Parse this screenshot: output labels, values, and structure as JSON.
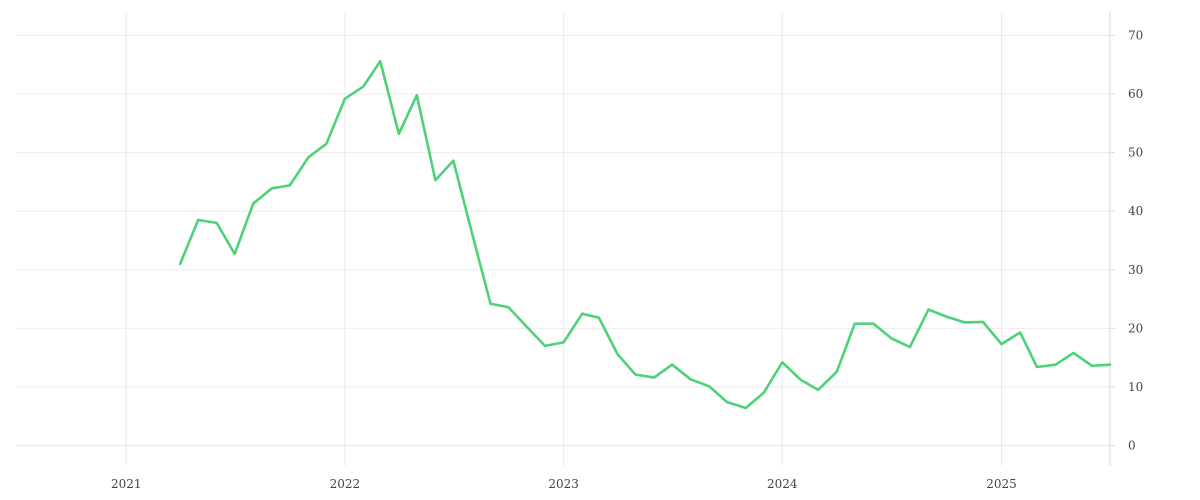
{
  "chart_data": {
    "type": "line",
    "title": "",
    "xlabel": "",
    "ylabel": "",
    "x_ticks": [
      {
        "label": "2021",
        "value": "2021-01-01"
      },
      {
        "label": "2022",
        "value": "2022-01-01"
      },
      {
        "label": "2023",
        "value": "2023-01-01"
      },
      {
        "label": "2024",
        "value": "2024-01-01"
      },
      {
        "label": "2025",
        "value": "2025-01-01"
      }
    ],
    "y_ticks": [
      0,
      10,
      20,
      30,
      40,
      50,
      60,
      70
    ],
    "xlim": [
      "2020-07-01",
      "2025-07-01"
    ],
    "ylim": [
      -3.5,
      74
    ],
    "y_axis_side": "right",
    "grid": true,
    "series": [
      {
        "color": "#4fd17a",
        "x": [
          "2021-04-01",
          "2021-05-01",
          "2021-06-01",
          "2021-07-01",
          "2021-08-01",
          "2021-09-01",
          "2021-10-01",
          "2021-11-01",
          "2021-12-01",
          "2022-01-01",
          "2022-02-01",
          "2022-03-01",
          "2022-04-01",
          "2022-05-01",
          "2022-06-01",
          "2022-07-01",
          "2022-08-01",
          "2022-09-01",
          "2022-10-01",
          "2022-11-01",
          "2022-12-01",
          "2023-01-01",
          "2023-02-01",
          "2023-03-01",
          "2023-04-01",
          "2023-05-01",
          "2023-06-01",
          "2023-07-01",
          "2023-08-01",
          "2023-09-01",
          "2023-10-01",
          "2023-11-01",
          "2023-12-01",
          "2024-01-01",
          "2024-02-01",
          "2024-03-01",
          "2024-04-01",
          "2024-05-01",
          "2024-06-01",
          "2024-07-01",
          "2024-08-01",
          "2024-09-01",
          "2024-10-01",
          "2024-11-01",
          "2024-12-01",
          "2025-01-01",
          "2025-02-01",
          "2025-03-01",
          "2025-04-01",
          "2025-05-01",
          "2025-06-01",
          "2025-07-01"
        ],
        "values": [
          31.0,
          38.5,
          38.0,
          32.7,
          41.3,
          43.9,
          44.4,
          49.2,
          51.5,
          59.2,
          61.3,
          65.6,
          53.2,
          59.8,
          45.3,
          48.6,
          36.3,
          24.2,
          23.6,
          20.2,
          17.0,
          17.6,
          22.5,
          21.8,
          15.6,
          12.1,
          11.6,
          13.8,
          11.3,
          10.1,
          7.4,
          6.4,
          9.0,
          14.2,
          11.2,
          9.5,
          12.6,
          20.8,
          20.8,
          18.3,
          16.8,
          23.2,
          22.0,
          21.0,
          21.1,
          17.3,
          19.3,
          13.4,
          13.8,
          15.8,
          13.6,
          13.8
        ]
      }
    ]
  }
}
